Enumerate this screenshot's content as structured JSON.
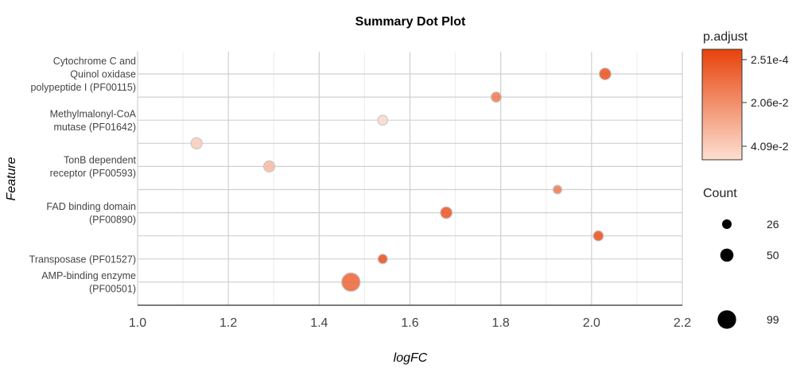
{
  "chart_data": {
    "type": "scatter",
    "title": "Summary Dot Plot",
    "xlabel": "logFC",
    "ylabel": "Feature",
    "xlim": [
      1.0,
      2.2
    ],
    "x_ticks": [
      "1.0",
      "1.2",
      "1.4",
      "1.6",
      "1.8",
      "2.0",
      "2.2"
    ],
    "grid": true,
    "y_labels": [
      [
        "Cytochrome C and",
        "Quinol oxidase",
        "polypeptide I (PF00115)"
      ],
      [
        "Methylmalonyl-CoA",
        "mutase (PF01642)"
      ],
      [
        "TonB dependent",
        "receptor (PF00593)"
      ],
      [
        "FAD binding domain",
        "(PF00890)"
      ],
      [
        "Transposase (PF01527)"
      ],
      [
        "AMP-binding enzyme",
        "(PF00501)"
      ]
    ],
    "rows": 11,
    "points": [
      {
        "row": 0,
        "x": 2.03,
        "count": 40,
        "p_adjust": 0.005
      },
      {
        "row": 1,
        "x": 1.79,
        "count": 30,
        "p_adjust": 0.015
      },
      {
        "row": 2,
        "x": 1.54,
        "count": 28,
        "p_adjust": 0.039
      },
      {
        "row": 3,
        "x": 1.13,
        "count": 36,
        "p_adjust": 0.036
      },
      {
        "row": 4,
        "x": 1.29,
        "count": 36,
        "p_adjust": 0.031
      },
      {
        "row": 5,
        "x": 1.925,
        "count": 22,
        "p_adjust": 0.015
      },
      {
        "row": 6,
        "x": 1.68,
        "count": 40,
        "p_adjust": 0.006
      },
      {
        "row": 7,
        "x": 2.015,
        "count": 30,
        "p_adjust": 0.005
      },
      {
        "row": 8,
        "x": 1.54,
        "count": 26,
        "p_adjust": 0.005
      },
      {
        "row": 9,
        "x": 1.47,
        "count": 99,
        "p_adjust": 0.01
      }
    ],
    "legend": {
      "color_title": "p.adjust",
      "color_ticks": [
        "2.51e-4",
        "2.06e-2",
        "4.09e-2"
      ],
      "color_range": [
        0.000251,
        0.0409
      ],
      "color_low": "#e8420b",
      "color_high": "#fde0d2",
      "size_title": "Count",
      "size_values": [
        26,
        50,
        99
      ],
      "size_labels": [
        "26",
        "50",
        "99"
      ],
      "size_color": "#000000"
    }
  }
}
